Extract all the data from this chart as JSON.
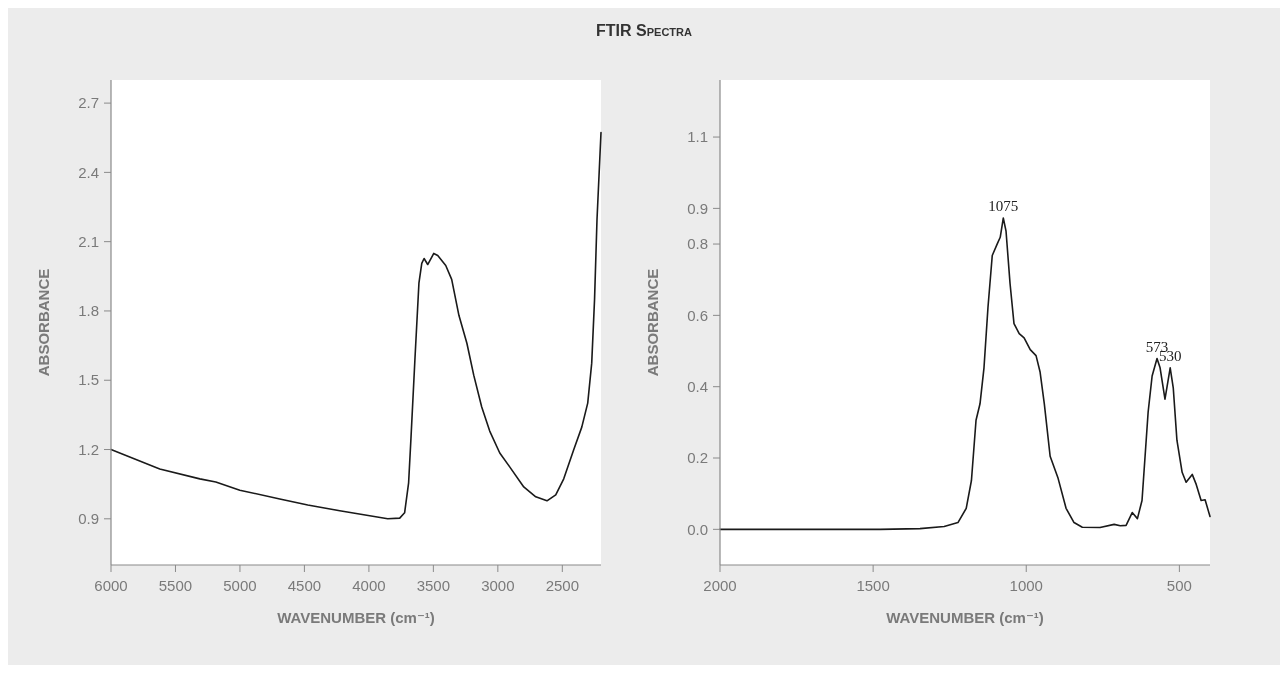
{
  "chart_data": [
    {
      "type": "line",
      "title": "FTIR Spectra",
      "xlabel": "WAVENUMBER (cm⁻¹)",
      "ylabel": "ABSORBANCE",
      "color": "#1a1a1a",
      "x": [
        6000,
        5622,
        5311,
        5187,
        5001,
        4691,
        4474,
        4226,
        3854,
        3761,
        3723,
        3692,
        3674,
        3643,
        3612,
        3590,
        3572,
        3544,
        3497,
        3466,
        3404,
        3358,
        3302,
        3240,
        3187,
        3125,
        3063,
        2985,
        2908,
        2799,
        2706,
        2619,
        2551,
        2489,
        2411,
        2349,
        2303,
        2272,
        2250,
        2231,
        2200
      ],
      "values": [
        1.2,
        1.116,
        1.073,
        1.059,
        1.024,
        0.986,
        0.96,
        0.935,
        0.9,
        0.903,
        0.926,
        1.056,
        1.246,
        1.591,
        1.92,
        2.006,
        2.027,
        2.001,
        2.049,
        2.04,
        1.997,
        1.937,
        1.781,
        1.66,
        1.522,
        1.384,
        1.28,
        1.185,
        1.125,
        1.038,
        0.995,
        0.978,
        1.004,
        1.073,
        1.2,
        1.297,
        1.401,
        1.574,
        1.85,
        2.196,
        2.573
      ],
      "xlim": [
        6000,
        2200
      ],
      "xticks": [
        6000,
        5500,
        5000,
        4500,
        4000,
        3500,
        3000,
        2500
      ],
      "ylim": [
        0.7,
        2.8
      ],
      "yticks": [
        0.9,
        1.2,
        1.5,
        1.8,
        2.1,
        2.4,
        2.7
      ]
    },
    {
      "type": "line",
      "xlabel": "WAVENUMBER (cm⁻¹)",
      "ylabel": "ABSORBANCE",
      "color": "#1a1a1a",
      "x": [
        2000,
        1477,
        1347,
        1268,
        1223,
        1196,
        1179,
        1164,
        1151,
        1138,
        1125,
        1111,
        1094,
        1085,
        1075,
        1066,
        1053,
        1040,
        1023,
        1007,
        987,
        968,
        955,
        941,
        922,
        896,
        870,
        844,
        817,
        759,
        713,
        693,
        674,
        654,
        637,
        622,
        602,
        589,
        573,
        563,
        547,
        530,
        520,
        508,
        491,
        478,
        458,
        445,
        429,
        416,
        400
      ],
      "values": [
        0,
        0,
        0.002,
        0.008,
        0.019,
        0.059,
        0.137,
        0.306,
        0.352,
        0.453,
        0.622,
        0.768,
        0.802,
        0.819,
        0.873,
        0.836,
        0.69,
        0.577,
        0.549,
        0.537,
        0.504,
        0.487,
        0.442,
        0.352,
        0.205,
        0.143,
        0.059,
        0.019,
        0.006,
        0.005,
        0.014,
        0.01,
        0.011,
        0.047,
        0.03,
        0.081,
        0.329,
        0.43,
        0.479,
        0.453,
        0.365,
        0.453,
        0.397,
        0.25,
        0.16,
        0.132,
        0.154,
        0.126,
        0.081,
        0.083,
        0.036
      ],
      "xlim": [
        2000,
        400
      ],
      "xticks": [
        2000,
        1500,
        1000,
        500
      ],
      "ylim": [
        -0.1,
        1.26
      ],
      "yticks": [
        {
          "value": 0,
          "label": "0.0"
        },
        0.2,
        0.4,
        0.6,
        0.8,
        0.9,
        1.1
      ],
      "annotations": [
        {
          "text": "1075",
          "x": 1075,
          "y": 0.873
        },
        {
          "text": "573",
          "x": 573,
          "y": 0.479
        },
        {
          "text": "530",
          "x": 530,
          "y": 0.453
        }
      ]
    }
  ]
}
